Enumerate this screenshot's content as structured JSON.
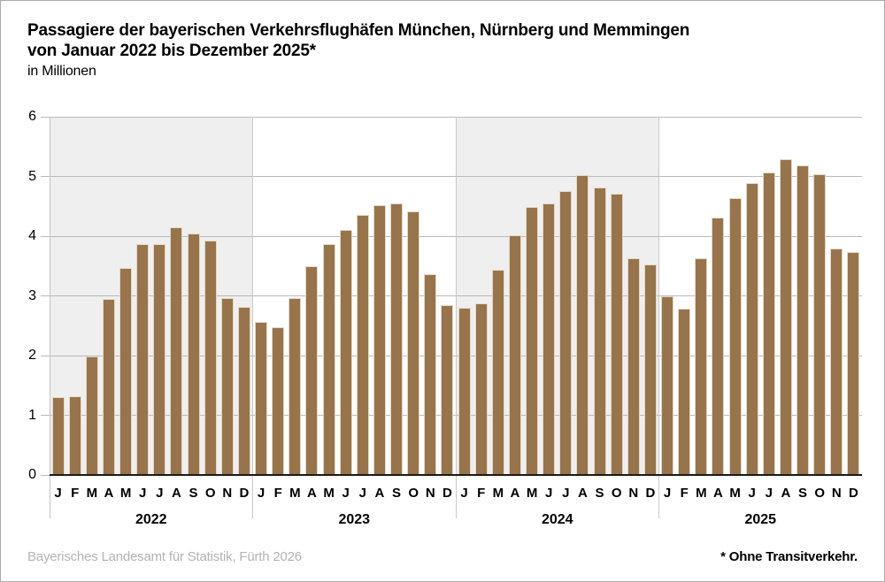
{
  "header": {
    "title_line1": "Passagiere der bayerischen Verkehrsflughäfen München, Nürnberg und Memmingen",
    "title_line2": "von Januar 2022 bis Dezember 2025*",
    "subtitle": "in Millionen"
  },
  "footer": {
    "source": "Bayerisches Landesamt für Statistik, Fürth 2026",
    "footnote": "* Ohne Transitverkehr."
  },
  "colors": {
    "bar_fill": "#97744B",
    "bar_edge": "#E3D8C6",
    "band_shading": "#F0EFEF",
    "gridline": "#BABABA",
    "axis": "#1A1A1A",
    "separator": "#C9C9C9",
    "source_text": "#B3B3B3"
  },
  "chart_data": {
    "type": "bar",
    "title": "Passagiere der bayerischen Verkehrsflughäfen München, Nürnberg und Memmingen von Januar 2022 bis Dezember 2025*",
    "ylabel": "in Millionen",
    "ylim": [
      0,
      6
    ],
    "yticks": [
      0,
      1,
      2,
      3,
      4,
      5,
      6
    ],
    "grid": true,
    "month_letters": [
      "J",
      "F",
      "M",
      "A",
      "M",
      "J",
      "J",
      "A",
      "S",
      "O",
      "N",
      "D"
    ],
    "series": [
      {
        "year": "2022",
        "shaded": true,
        "values": [
          1.3,
          1.32,
          1.98,
          2.95,
          3.47,
          3.87,
          3.87,
          4.15,
          4.05,
          3.92,
          2.97,
          2.82
        ]
      },
      {
        "year": "2023",
        "shaded": false,
        "values": [
          2.56,
          2.48,
          2.96,
          3.5,
          3.87,
          4.11,
          4.36,
          4.52,
          4.55,
          4.42,
          3.37,
          2.85
        ]
      },
      {
        "year": "2024",
        "shaded": true,
        "values": [
          2.8,
          2.88,
          3.44,
          4.01,
          4.49,
          4.55,
          4.75,
          5.02,
          4.82,
          4.71,
          3.63,
          3.52
        ]
      },
      {
        "year": "2025",
        "shaded": false,
        "values": [
          3.0,
          2.79,
          3.63,
          4.31,
          4.63,
          4.89,
          5.07,
          5.29,
          5.18,
          5.04,
          3.8,
          3.74
        ]
      }
    ]
  }
}
